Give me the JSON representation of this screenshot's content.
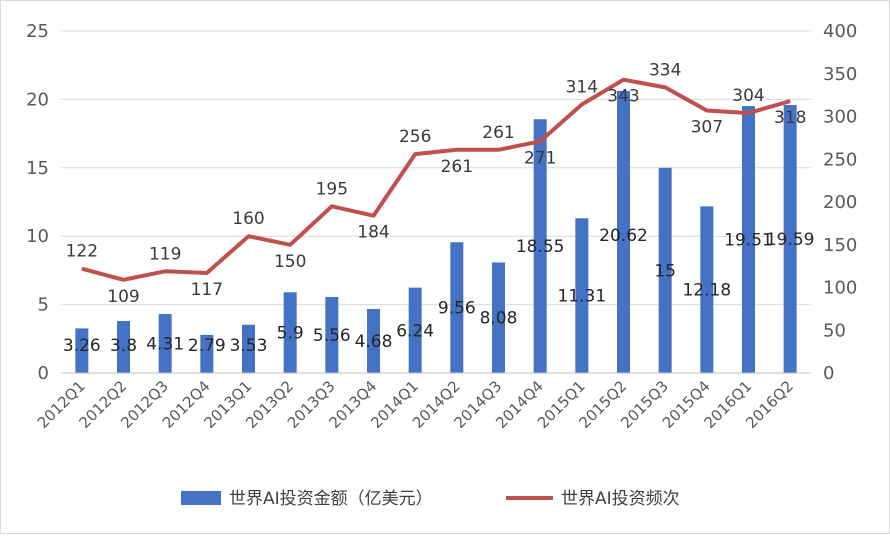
{
  "chart_data": {
    "type": "bar",
    "categories": [
      "2012Q1",
      "2012Q2",
      "2012Q3",
      "2012Q4",
      "2013Q1",
      "2013Q2",
      "2013Q3",
      "2013Q4",
      "2014Q1",
      "2014Q2",
      "2014Q3",
      "2014Q4",
      "2015Q1",
      "2015Q2",
      "2015Q3",
      "2015Q4",
      "2016Q1",
      "2016Q2"
    ],
    "series": [
      {
        "name": "世界AI投资金额（亿美元）",
        "type": "bar",
        "axis": "left",
        "color": "#4472c4",
        "values": [
          3.26,
          3.8,
          4.31,
          2.79,
          3.53,
          5.9,
          5.56,
          4.68,
          6.24,
          9.56,
          8.08,
          18.55,
          11.31,
          20.62,
          15,
          12.18,
          19.51,
          19.59
        ],
        "labels": [
          "3.26",
          "3.8",
          "4.31",
          "2.79",
          "3.53",
          "5.9",
          "5.56",
          "4.68",
          "6.24",
          "9.56",
          "8.08",
          "18.55",
          "11.31",
          "20.62",
          "15",
          "12.18",
          "19.51",
          "19.59"
        ]
      },
      {
        "name": "世界AI投资频次",
        "type": "line",
        "axis": "right",
        "color": "#c0504d",
        "values": [
          122,
          109,
          119,
          117,
          160,
          150,
          195,
          184,
          256,
          261,
          261,
          271,
          314,
          343,
          334,
          307,
          304,
          318
        ],
        "labels": [
          "122",
          "109",
          "119",
          "117",
          "160",
          "150",
          "195",
          "184",
          "256",
          "261",
          "261",
          "271",
          "314",
          "343",
          "334",
          "307",
          "304",
          "318"
        ]
      }
    ],
    "y_left": {
      "min": 0,
      "max": 25,
      "ticks": [
        "0",
        "5",
        "10",
        "15",
        "20",
        "25"
      ]
    },
    "y_right": {
      "min": 0,
      "max": 400,
      "ticks": [
        "0",
        "50",
        "100",
        "150",
        "200",
        "250",
        "300",
        "350",
        "400"
      ]
    },
    "grid": true,
    "legend": "bottom"
  }
}
